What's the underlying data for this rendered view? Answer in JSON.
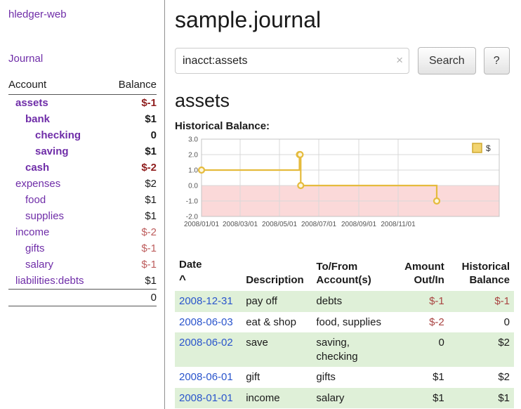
{
  "colors": {
    "link_purple": "#6f2da8",
    "link_blue": "#2a55cc",
    "negative_dark_red": "#8f1d1d",
    "negative_light_red": "#bd5c5c",
    "amount_negative_red": "#a94442",
    "row_green": "#dff0d8",
    "chart_line_yellow": "#e5bb3d",
    "chart_negative_fill_pink": "#fbd9d9"
  },
  "sidebar": {
    "app_title": "hledger-web",
    "journal_link": "Journal",
    "accounts": {
      "header_account": "Account",
      "header_balance": "Balance",
      "rows": [
        {
          "name": "assets",
          "balance": "$-1"
        },
        {
          "name": "bank",
          "balance": "$1"
        },
        {
          "name": "checking",
          "balance": "0"
        },
        {
          "name": "saving",
          "balance": "$1"
        },
        {
          "name": "cash",
          "balance": "$-2"
        },
        {
          "name": "expenses",
          "balance": "$2"
        },
        {
          "name": "food",
          "balance": "$1"
        },
        {
          "name": "supplies",
          "balance": "$1"
        },
        {
          "name": "income",
          "balance": "$-2"
        },
        {
          "name": "gifts",
          "balance": "$-1"
        },
        {
          "name": "salary",
          "balance": "$-1"
        },
        {
          "name": "liabilities:debts",
          "balance": "$1"
        }
      ],
      "total": "0"
    }
  },
  "main": {
    "title": "sample.journal",
    "search": {
      "value": "inacct:assets",
      "clear_icon": "×",
      "search_button": "Search",
      "help_button": "?"
    },
    "account_heading": "assets",
    "chart_title": "Historical Balance:"
  },
  "chart_data": {
    "type": "line",
    "step": true,
    "title": "Historical Balance",
    "series": [
      {
        "name": "$",
        "points": [
          [
            "2008-01-01",
            1
          ],
          [
            "2008-06-01",
            2
          ],
          [
            "2008-06-02",
            2
          ],
          [
            "2008-06-03",
            0
          ],
          [
            "2008-12-31",
            -1
          ]
        ]
      }
    ],
    "ylim": [
      -2,
      3
    ],
    "x_domain": [
      "2008-01-01",
      "2009-04-07"
    ],
    "yticks": [
      "3.0",
      "2.0",
      "1.0",
      "0.0",
      "-1.0",
      "-2.0"
    ],
    "xticks": [
      "2008/01/01",
      "2008/03/01",
      "2008/05/01",
      "2008/07/01",
      "2008/09/01",
      "2008/11/01"
    ],
    "legend": "$",
    "legend_position": "top-right",
    "grid": true,
    "negative_region_shaded": true
  },
  "register": {
    "headers": {
      "date": "Date",
      "sort_indicator": "^",
      "description": "Description",
      "account": "To/From\nAccount(s)",
      "amount": "Amount\nOut/In",
      "balance": "Historical\nBalance"
    },
    "rows": [
      {
        "date": "2008-12-31",
        "description": "pay off",
        "accounts": "debts",
        "amount": "$-1",
        "balance": "$-1"
      },
      {
        "date": "2008-06-03",
        "description": "eat & shop",
        "accounts": "food, supplies",
        "amount": "$-2",
        "balance": "0"
      },
      {
        "date": "2008-06-02",
        "description": "save",
        "accounts": "saving, checking",
        "amount": "0",
        "balance": "$2"
      },
      {
        "date": "2008-06-01",
        "description": "gift",
        "accounts": "gifts",
        "amount": "$1",
        "balance": "$2"
      },
      {
        "date": "2008-01-01",
        "description": "income",
        "accounts": "salary",
        "amount": "$1",
        "balance": "$1"
      }
    ]
  }
}
